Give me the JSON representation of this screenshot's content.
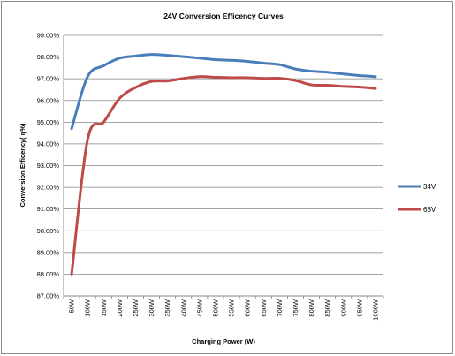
{
  "chart_data": {
    "type": "line",
    "title": "24V  Conversion Efficency Curves",
    "xlabel": "Charging  Power  (W)",
    "ylabel": "Conversion Efficency( η%)",
    "categories": [
      "50W",
      "100W",
      "150W",
      "200W",
      "250W",
      "300W",
      "350W",
      "400W",
      "450W",
      "500W",
      "550W",
      "600W",
      "650W",
      "700W",
      "750W",
      "800W",
      "850W",
      "900W",
      "950W",
      "1000W"
    ],
    "ylim": [
      87.0,
      99.0
    ],
    "yticks": [
      "87.00%",
      "88.00%",
      "89.00%",
      "90.00%",
      "91.00%",
      "92.00%",
      "93.00%",
      "94.00%",
      "95.00%",
      "96.00%",
      "97.00%",
      "98.00%",
      "99.00%"
    ],
    "grid": true,
    "legend_position": "right",
    "series": [
      {
        "name": "34V",
        "color": "#4a7ebb",
        "values": [
          94.7,
          97.1,
          97.6,
          97.95,
          98.05,
          98.12,
          98.08,
          98.02,
          97.95,
          97.88,
          97.85,
          97.8,
          97.72,
          97.65,
          97.45,
          97.35,
          97.3,
          97.22,
          97.15,
          97.1
        ]
      },
      {
        "name": "68V",
        "color": "#be4b48",
        "values": [
          88.0,
          94.2,
          95.0,
          96.1,
          96.6,
          96.88,
          96.9,
          97.02,
          97.1,
          97.07,
          97.05,
          97.05,
          97.02,
          97.02,
          96.92,
          96.72,
          96.7,
          96.65,
          96.62,
          96.55
        ]
      }
    ]
  }
}
